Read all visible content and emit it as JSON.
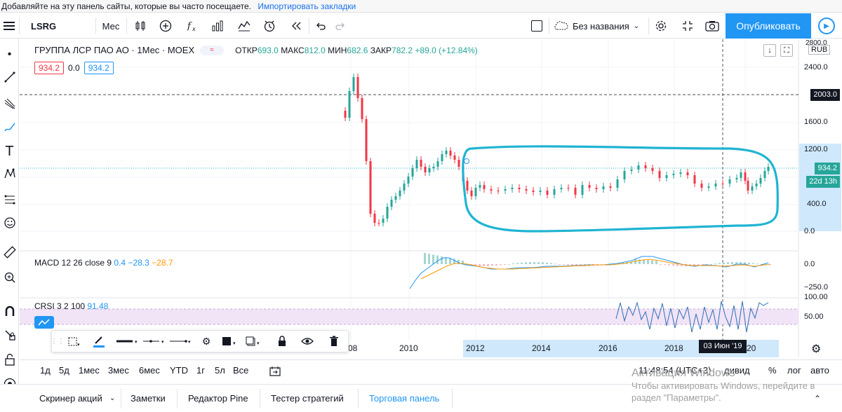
{
  "bookmarks": {
    "prompt": "Добавляйте на эту панель сайты, которые вы часто посещаете.",
    "import_link": "Импортировать закладки"
  },
  "toolbar": {
    "symbol": "LSRG",
    "interval": "Мес",
    "layout_name": "Без названия",
    "publish_label": "Опубликовать"
  },
  "legend": {
    "title": "ГРУППА ЛСР ПАО АО · 1Мес · MOEX",
    "toggle_text": "≈",
    "open_label": "ОТКР",
    "open": "693.0",
    "high_label": "МАКС",
    "high": "812.0",
    "low_label": "МИН",
    "low": "682.6",
    "close_label": "ЗАКР",
    "close": "782.2",
    "change": "+89.0 (+12.84%)",
    "box_sell": "934.2",
    "box_spread": "0.0",
    "box_buy": "934.2"
  },
  "currency": "RUB",
  "price_tags": {
    "alert_level": "2003.0",
    "last_price": "934.2",
    "countdown": "22d 13h"
  },
  "price_axis": [
    "2800.0",
    "2400.0",
    "1600.0",
    "1200.0",
    "400.0",
    "0.0"
  ],
  "macd": {
    "label": "MACD 12 26 close 9",
    "v1": "0.4",
    "v2": "−28.3",
    "v3": "−28.7",
    "axis": [
      "0.0",
      "−250.0"
    ]
  },
  "crsi": {
    "label": "CRSI 3 2 100",
    "value": "91.48",
    "axis": [
      "100.00",
      "50.00"
    ]
  },
  "time_axis": [
    "08",
    "2010",
    "2012",
    "2014",
    "2016",
    "2018",
    "20"
  ],
  "crosshair_date": "03 Июн '19",
  "ranges": [
    "1д",
    "5д",
    "1мес",
    "3мес",
    "6мес",
    "YTD",
    "1г",
    "5л",
    "Все"
  ],
  "clock": "11:48:54 (UTC+3)",
  "options": {
    "adj": "дивид",
    "percent": "%",
    "log": "лог",
    "auto": "авто"
  },
  "bottom_tabs": [
    "Скринер акций",
    "Заметки",
    "Редактор Pine",
    "Тестер стратегий",
    "Торговая панель"
  ],
  "watermark": {
    "title": "Активация Windows",
    "line1": "Чтобы активировать Windows, перейдите в",
    "line2": "раздел \"Параметры\"."
  },
  "colors": {
    "accent": "#2196f3",
    "up": "#26a69a",
    "down": "#f23645",
    "annotation": "#1fb4d2"
  }
}
